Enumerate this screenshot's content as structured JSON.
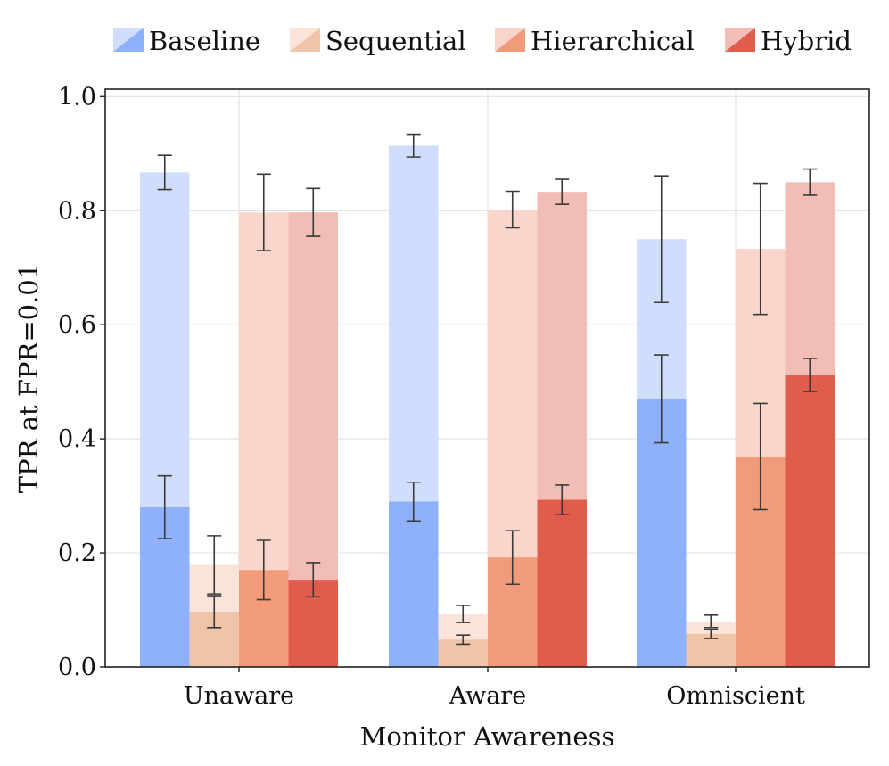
{
  "chart_data": {
    "type": "bar",
    "xlabel": "Monitor Awareness",
    "ylabel": "TPR at FPR=0.01",
    "ylim": [
      0,
      1.0
    ],
    "yticks": [
      "0.0",
      "0.2",
      "0.4",
      "0.6",
      "0.8",
      "1.0"
    ],
    "grid": true,
    "legend_position": "top",
    "categories": [
      "Unaware",
      "Aware",
      "Omniscient"
    ],
    "series": [
      {
        "name": "Baseline",
        "color_dark": "#8fb0fb",
        "color_light": "#d0ddfc",
        "values_dark": [
          0.28,
          0.29,
          0.47
        ],
        "err_dark": [
          0.055,
          0.034,
          0.077
        ],
        "values_light": [
          0.867,
          0.914,
          0.75
        ],
        "err_light": [
          0.03,
          0.02,
          0.111
        ]
      },
      {
        "name": "Sequential",
        "color_dark": "#f0c4a8",
        "color_light": "#fae3d9",
        "values_dark": [
          0.097,
          0.048,
          0.058
        ],
        "err_dark": [
          0.028,
          0.008,
          0.008
        ],
        "values_light": [
          0.179,
          0.093,
          0.08
        ],
        "err_light": [
          0.051,
          0.015,
          0.011
        ]
      },
      {
        "name": "Hierarchical",
        "color_dark": "#f29b7b",
        "color_light": "#f9d6cb",
        "values_dark": [
          0.17,
          0.192,
          0.369
        ],
        "err_dark": [
          0.052,
          0.047,
          0.093
        ],
        "values_light": [
          0.797,
          0.802,
          0.733
        ],
        "err_light": [
          0.067,
          0.032,
          0.115
        ]
      },
      {
        "name": "Hybrid",
        "color_dark": "#e05d4b",
        "color_light": "#f1bdb5",
        "values_dark": [
          0.153,
          0.293,
          0.512
        ],
        "err_dark": [
          0.03,
          0.026,
          0.029
        ],
        "values_light": [
          0.797,
          0.833,
          0.85
        ],
        "err_light": [
          0.042,
          0.022,
          0.023
        ]
      }
    ]
  }
}
